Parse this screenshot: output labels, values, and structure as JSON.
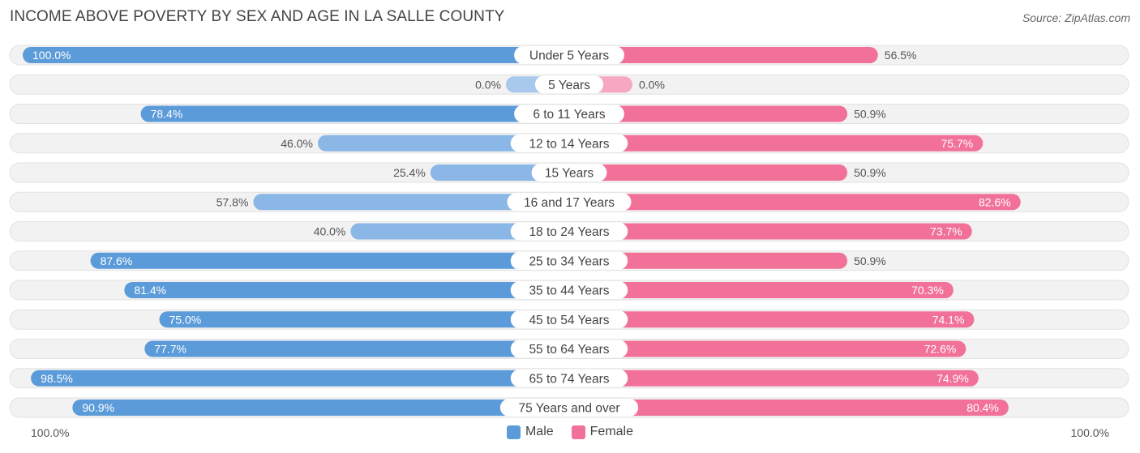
{
  "header": {
    "title": "INCOME ABOVE POVERTY BY SEX AND AGE IN LA SALLE COUNTY",
    "source": "Source: ZipAtlas.com"
  },
  "axis": {
    "left_label": "100.0%",
    "right_label": "100.0%"
  },
  "legend": {
    "male": "Male",
    "female": "Female"
  },
  "colors": {
    "male_strong": "#5b9bd9",
    "male_light": "#a9c9ec",
    "female_strong": "#f27199",
    "female_light": "#f6a8c2",
    "track": "#f2f2f2"
  },
  "chart_data": {
    "type": "bar",
    "orientation": "horizontal-diverging",
    "title": "INCOME ABOVE POVERTY BY SEX AND AGE IN LA SALLE COUNTY",
    "xlim": [
      0,
      100
    ],
    "categories": [
      "Under 5 Years",
      "5 Years",
      "6 to 11 Years",
      "12 to 14 Years",
      "15 Years",
      "16 and 17 Years",
      "18 to 24 Years",
      "25 to 34 Years",
      "35 to 44 Years",
      "45 to 54 Years",
      "55 to 64 Years",
      "65 to 74 Years",
      "75 Years and over"
    ],
    "series": [
      {
        "name": "Male",
        "values": [
          100.0,
          0.0,
          78.4,
          46.0,
          25.4,
          57.8,
          40.0,
          87.6,
          81.4,
          75.0,
          77.7,
          98.5,
          90.9
        ],
        "labels": [
          "100.0%",
          "0.0%",
          "78.4%",
          "46.0%",
          "25.4%",
          "57.8%",
          "40.0%",
          "87.6%",
          "81.4%",
          "75.0%",
          "77.7%",
          "98.5%",
          "90.9%"
        ]
      },
      {
        "name": "Female",
        "values": [
          56.5,
          0.0,
          50.9,
          75.7,
          50.9,
          82.6,
          73.7,
          50.9,
          70.3,
          74.1,
          72.6,
          74.9,
          80.4
        ],
        "labels": [
          "56.5%",
          "0.0%",
          "50.9%",
          "75.7%",
          "50.9%",
          "82.6%",
          "73.7%",
          "50.9%",
          "70.3%",
          "74.1%",
          "72.6%",
          "74.9%",
          "80.4%"
        ]
      }
    ]
  }
}
